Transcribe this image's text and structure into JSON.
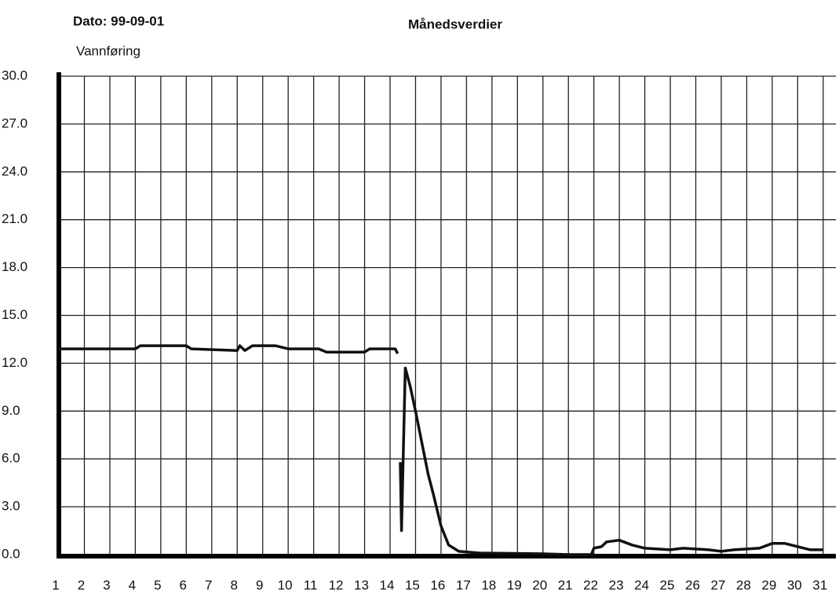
{
  "chart_data": {
    "type": "line",
    "date": "Dato: 99-09-01",
    "title": "Månedsverdier",
    "y_label": "Vannføring",
    "xlim": [
      1,
      31.5
    ],
    "xticks": [
      1,
      2,
      3,
      4,
      5,
      6,
      7,
      8,
      9,
      10,
      11,
      12,
      13,
      14,
      15,
      16,
      17,
      18,
      19,
      20,
      21,
      22,
      23,
      24,
      25,
      26,
      27,
      28,
      29,
      30,
      31
    ],
    "ylim": [
      0,
      30
    ],
    "yticks": [
      {
        "value": 0,
        "label": "0.0"
      },
      {
        "value": 3,
        "label": "3.0"
      },
      {
        "value": 6,
        "label": "6.0"
      },
      {
        "value": 9,
        "label": "9.0"
      },
      {
        "value": 12,
        "label": "12.0"
      },
      {
        "value": 15,
        "label": "15.0"
      },
      {
        "value": 18,
        "label": "18.0"
      },
      {
        "value": 21,
        "label": "21.0"
      },
      {
        "value": 24,
        "label": "24.0"
      },
      {
        "value": 27,
        "label": "27.0"
      },
      {
        "value": 30,
        "label": "30.0"
      }
    ],
    "grid": true,
    "color": "#111111",
    "x": [
      1,
      4,
      4.2,
      6,
      6.2,
      8,
      8.1,
      8.3,
      8.6,
      9.5,
      10,
      11.2,
      11.5,
      13,
      13.2,
      14.2,
      14.3,
      null,
      14.4,
      14.45,
      14.5,
      14.6,
      14.8,
      15,
      15.5,
      15.7,
      16,
      16.3,
      16.7,
      17.5,
      20,
      21,
      21.9,
      22,
      22.3,
      22.5,
      23,
      23.5,
      24,
      25,
      25.5,
      26.5,
      27,
      27.5,
      28.5,
      29,
      29.5,
      30.5,
      31
    ],
    "values": [
      12.9,
      12.9,
      13.1,
      13.1,
      12.9,
      12.8,
      13.1,
      12.8,
      13.1,
      13.1,
      12.9,
      12.9,
      12.7,
      12.7,
      12.9,
      12.9,
      12.6,
      null,
      5.8,
      1.5,
      5.0,
      11.7,
      10.5,
      9.0,
      5.0,
      3.8,
      1.8,
      0.6,
      0.2,
      0.1,
      0.05,
      0,
      0,
      0.4,
      0.5,
      0.8,
      0.9,
      0.6,
      0.4,
      0.3,
      0.4,
      0.3,
      0.2,
      0.3,
      0.4,
      0.7,
      0.7,
      0.3,
      0.3
    ]
  }
}
